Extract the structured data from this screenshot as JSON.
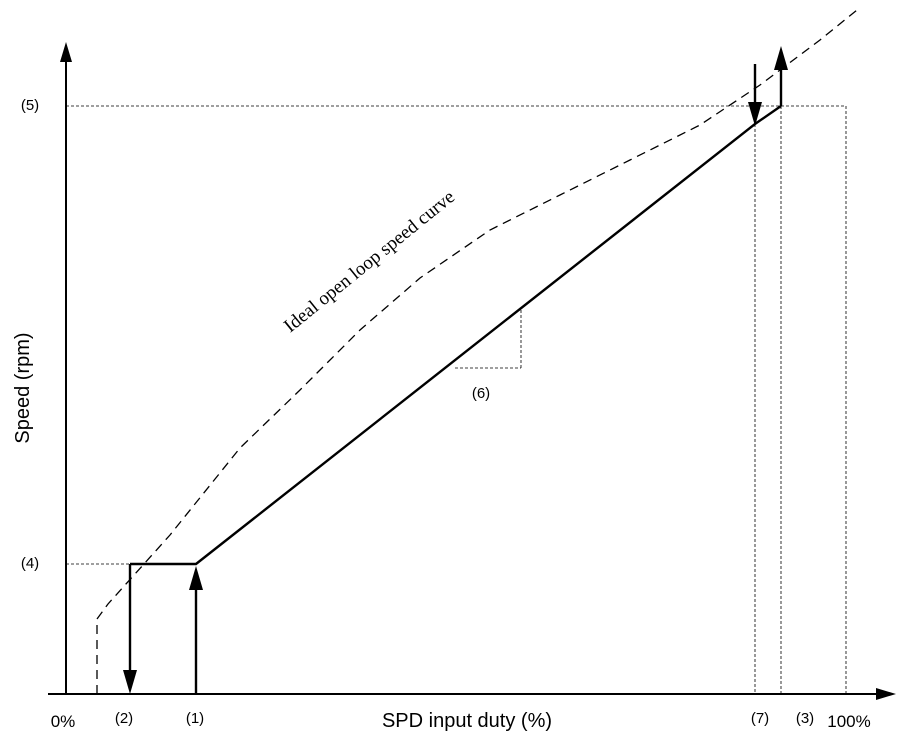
{
  "diagram": {
    "x_axis_title": "SPD input duty (%)",
    "y_axis_title": "Speed (rpm)",
    "x_ticks": {
      "zero": "0%",
      "p2": "(2)",
      "p1": "(1)",
      "p7": "(7)",
      "p3": "(3)",
      "hundred": "100%"
    },
    "y_ticks": {
      "p4": "(4)",
      "p5": "(5)"
    },
    "slope_label": "(6)",
    "curve_label": "Ideal open loop speed curve"
  },
  "colors": {
    "line": "#000000",
    "background": "#ffffff"
  }
}
